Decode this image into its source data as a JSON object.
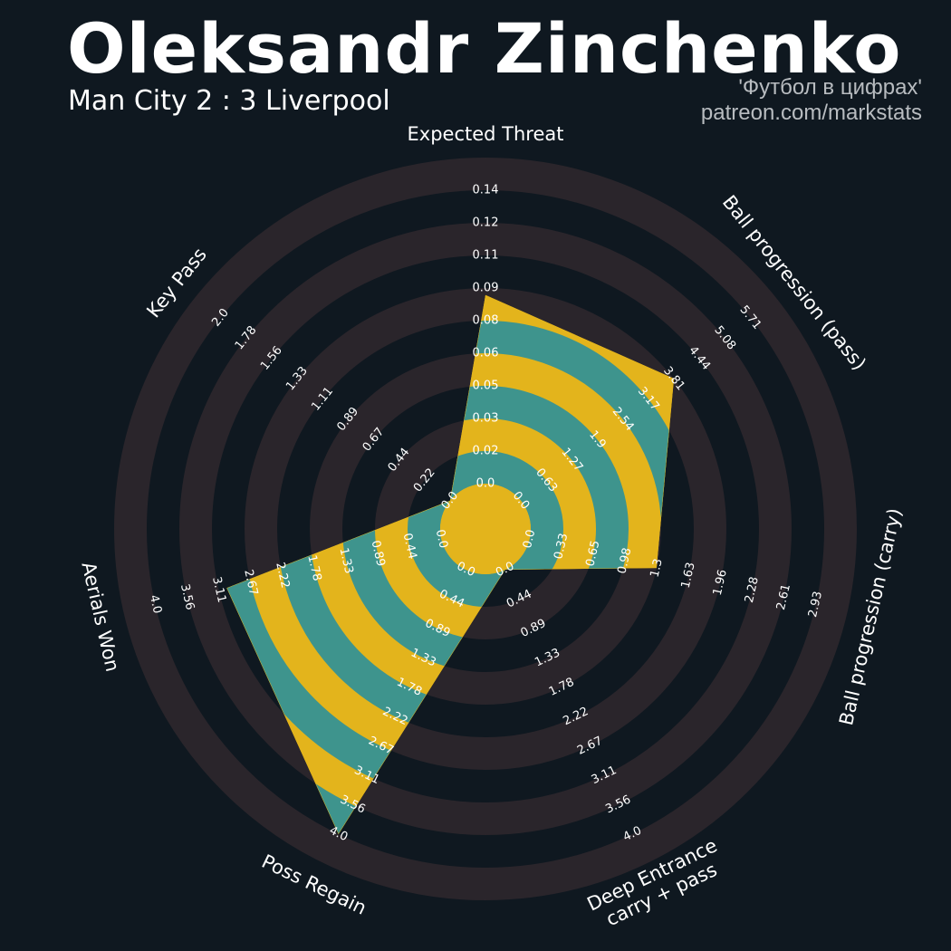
{
  "header": {
    "title": "Oleksandr Zinchenko",
    "subtitle": "Man City 2 : 3 Liverpool",
    "source": "'Футбол в цифрах'",
    "credit": "patreon.com/markstats"
  },
  "colors": {
    "background": "#0f1820",
    "ring_band": "#2a252b",
    "fill_primary": "#e3b41c",
    "fill_secondary": "#3e948d",
    "text": "#ffffff",
    "credit": "#b8bcc0"
  },
  "chart_data": {
    "type": "radar",
    "title": "Oleksandr Zinchenko",
    "subtitle": "Man City 2 : 3 Liverpool",
    "grid": true,
    "params": [
      {
        "label": "Expected Threat",
        "value": 0.09,
        "ticks": [
          "0.0",
          "0.02",
          "0.03",
          "0.05",
          "0.06",
          "0.08",
          "0.09",
          "0.11",
          "0.12",
          "0.14"
        ]
      },
      {
        "label": "Ball progression (pass)",
        "value": 3.81,
        "ticks": [
          "0.0",
          "0.63",
          "1.27",
          "1.9",
          "2.54",
          "3.17",
          "3.81",
          "4.44",
          "5.08",
          "5.71"
        ]
      },
      {
        "label": "Ball progression (carry)",
        "value": 1.3,
        "ticks": [
          "0.0",
          "0.33",
          "0.65",
          "0.98",
          "1.3",
          "1.63",
          "1.96",
          "2.28",
          "2.61",
          "2.93"
        ]
      },
      {
        "label": "Deep Entrance\ncarry + pass",
        "value": 0.0,
        "ticks": [
          "0.0",
          "0.44",
          "0.89",
          "1.33",
          "1.78",
          "2.22",
          "2.67",
          "3.11",
          "3.56",
          "4.0"
        ]
      },
      {
        "label": "Poss Regain",
        "value": 4.0,
        "ticks": [
          "0.0",
          "0.44",
          "0.89",
          "1.33",
          "1.78",
          "2.22",
          "2.67",
          "3.11",
          "3.56",
          "4.0"
        ]
      },
      {
        "label": "Aerials Won",
        "value": 3.0,
        "ticks": [
          "0.0",
          "0.44",
          "0.89",
          "1.33",
          "1.78",
          "2.22",
          "2.67",
          "3.11",
          "3.56",
          "4.0"
        ]
      },
      {
        "label": "Key Pass",
        "value": 0.0,
        "ticks": [
          "0.0",
          "0.22",
          "0.44",
          "0.67",
          "0.89",
          "1.11",
          "1.33",
          "1.56",
          "1.78",
          "2.0"
        ]
      }
    ]
  }
}
